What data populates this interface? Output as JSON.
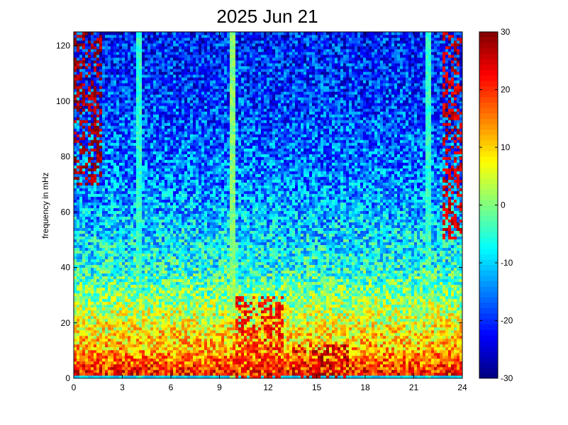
{
  "chart_data": {
    "type": "heatmap",
    "title": "2025 Jun 21",
    "xlabel": "",
    "ylabel": "frequency in mHz",
    "xlim": [
      0,
      24
    ],
    "ylim": [
      0,
      125
    ],
    "xticks": [
      "0",
      "3",
      "6",
      "9",
      "12",
      "15",
      "18",
      "21",
      "24"
    ],
    "yticks": [
      "0",
      "20",
      "40",
      "60",
      "80",
      "100",
      "120"
    ],
    "colorbar": {
      "range": [
        -30,
        30
      ],
      "ticks": [
        "30",
        "20",
        "10",
        "0",
        "-10",
        "-20",
        "-30"
      ],
      "colormap": "jet"
    },
    "z_profile_by_frequency": [
      {
        "freq": 0,
        "level": 22
      },
      {
        "freq": 5,
        "level": 18
      },
      {
        "freq": 10,
        "level": 12
      },
      {
        "freq": 20,
        "level": 6
      },
      {
        "freq": 30,
        "level": 0
      },
      {
        "freq": 40,
        "level": -6
      },
      {
        "freq": 60,
        "level": -12
      },
      {
        "freq": 80,
        "level": -16
      },
      {
        "freq": 100,
        "level": -19
      },
      {
        "freq": 125,
        "level": -21
      }
    ],
    "features": [
      {
        "kind": "band",
        "freq_range": [
          0,
          1.5
        ],
        "level": -10
      },
      {
        "kind": "vertical_line",
        "x": 4.0,
        "level": -5
      },
      {
        "kind": "vertical_line",
        "x": 9.8,
        "level": 0
      },
      {
        "kind": "vertical_line",
        "x": 21.9,
        "level": -5
      },
      {
        "kind": "hot_patch",
        "x_range": [
          0,
          1.8
        ],
        "freq_range": [
          70,
          125
        ],
        "level": 28
      },
      {
        "kind": "hot_patch",
        "x_range": [
          22.8,
          24
        ],
        "freq_range": [
          50,
          125
        ],
        "level": 25
      },
      {
        "kind": "hot_patch",
        "x_range": [
          10,
          13
        ],
        "freq_range": [
          0,
          30
        ],
        "level": 22
      },
      {
        "kind": "hot_patch",
        "x_range": [
          13.5,
          17
        ],
        "freq_range": [
          0,
          12
        ],
        "level": 26
      }
    ]
  }
}
